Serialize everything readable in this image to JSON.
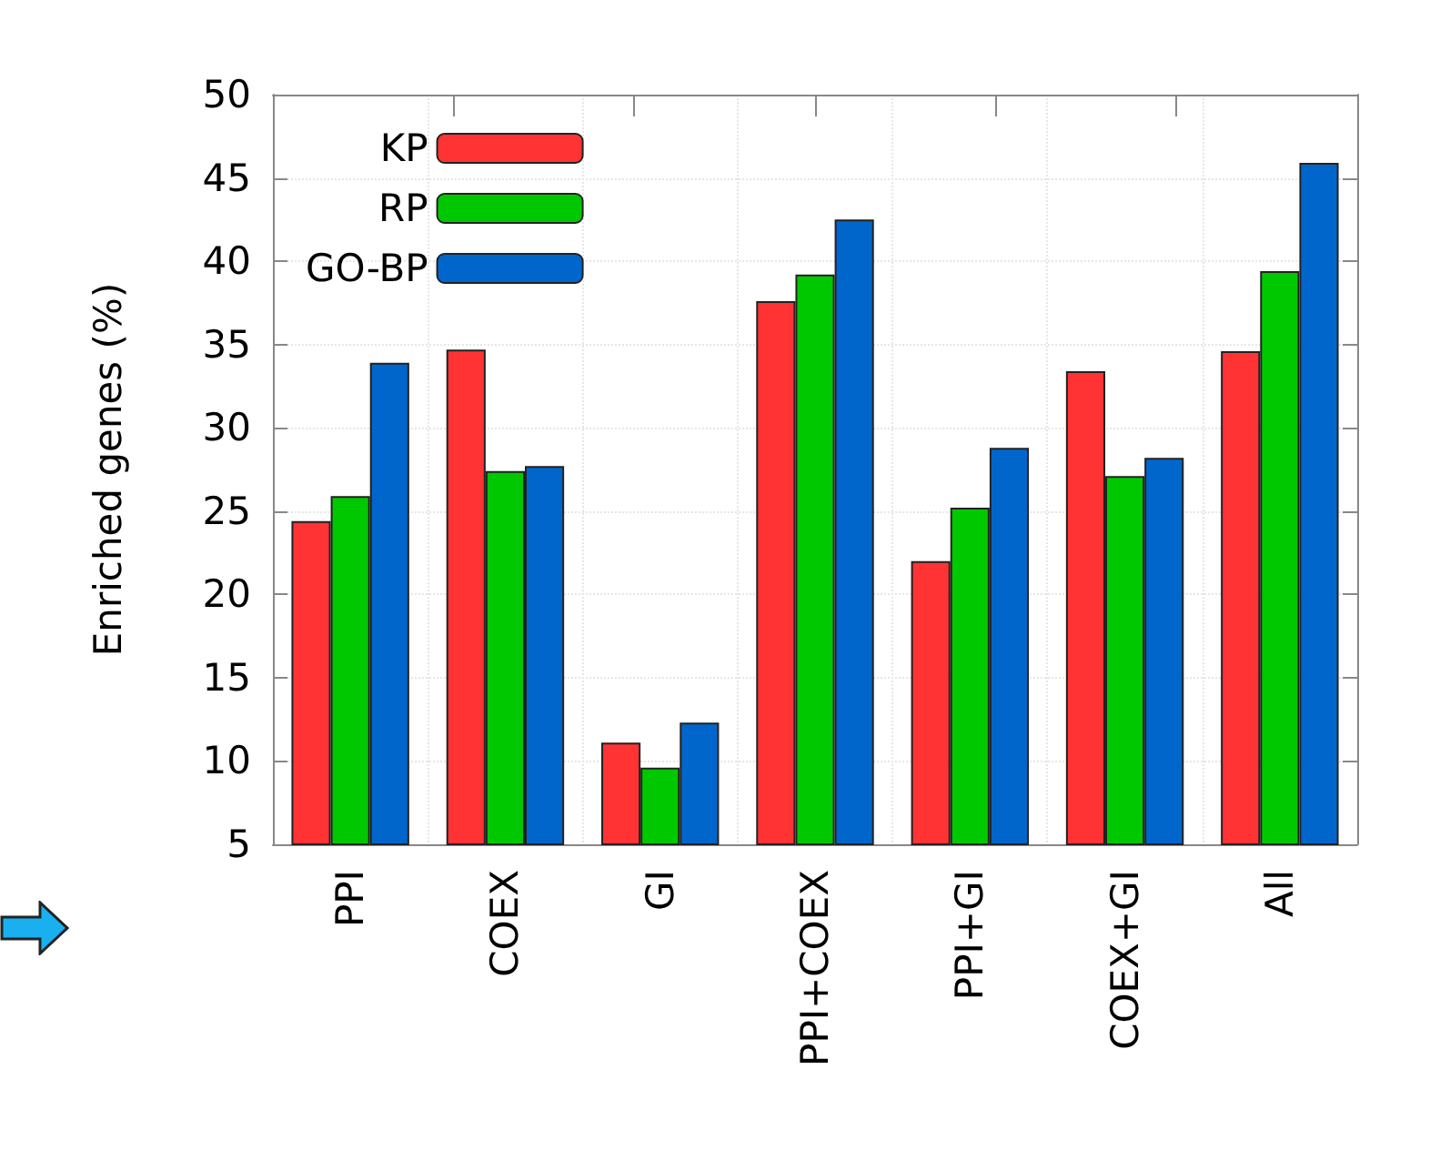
{
  "chart_data": {
    "type": "bar",
    "ylabel": "Enriched genes (%)",
    "categories": [
      "PPI",
      "COEX",
      "GI",
      "PPI+COEX",
      "PPI+GI",
      "COEX+GI",
      "All"
    ],
    "series": [
      {
        "name": "KP",
        "color": "#ff3333",
        "values": [
          24.4,
          34.7,
          11.1,
          37.6,
          22.0,
          33.4,
          34.6
        ]
      },
      {
        "name": "RP",
        "color": "#00c800",
        "values": [
          25.9,
          27.4,
          9.6,
          39.2,
          25.2,
          27.1,
          39.4
        ]
      },
      {
        "name": "GO-BP",
        "color": "#0066cc",
        "values": [
          33.9,
          27.7,
          12.3,
          42.5,
          28.8,
          28.2,
          45.9
        ]
      }
    ],
    "ylim": [
      5,
      50
    ],
    "yticks": [
      5,
      10,
      15,
      20,
      25,
      30,
      35,
      40,
      45,
      50
    ],
    "grid": true,
    "legend": "top left"
  }
}
